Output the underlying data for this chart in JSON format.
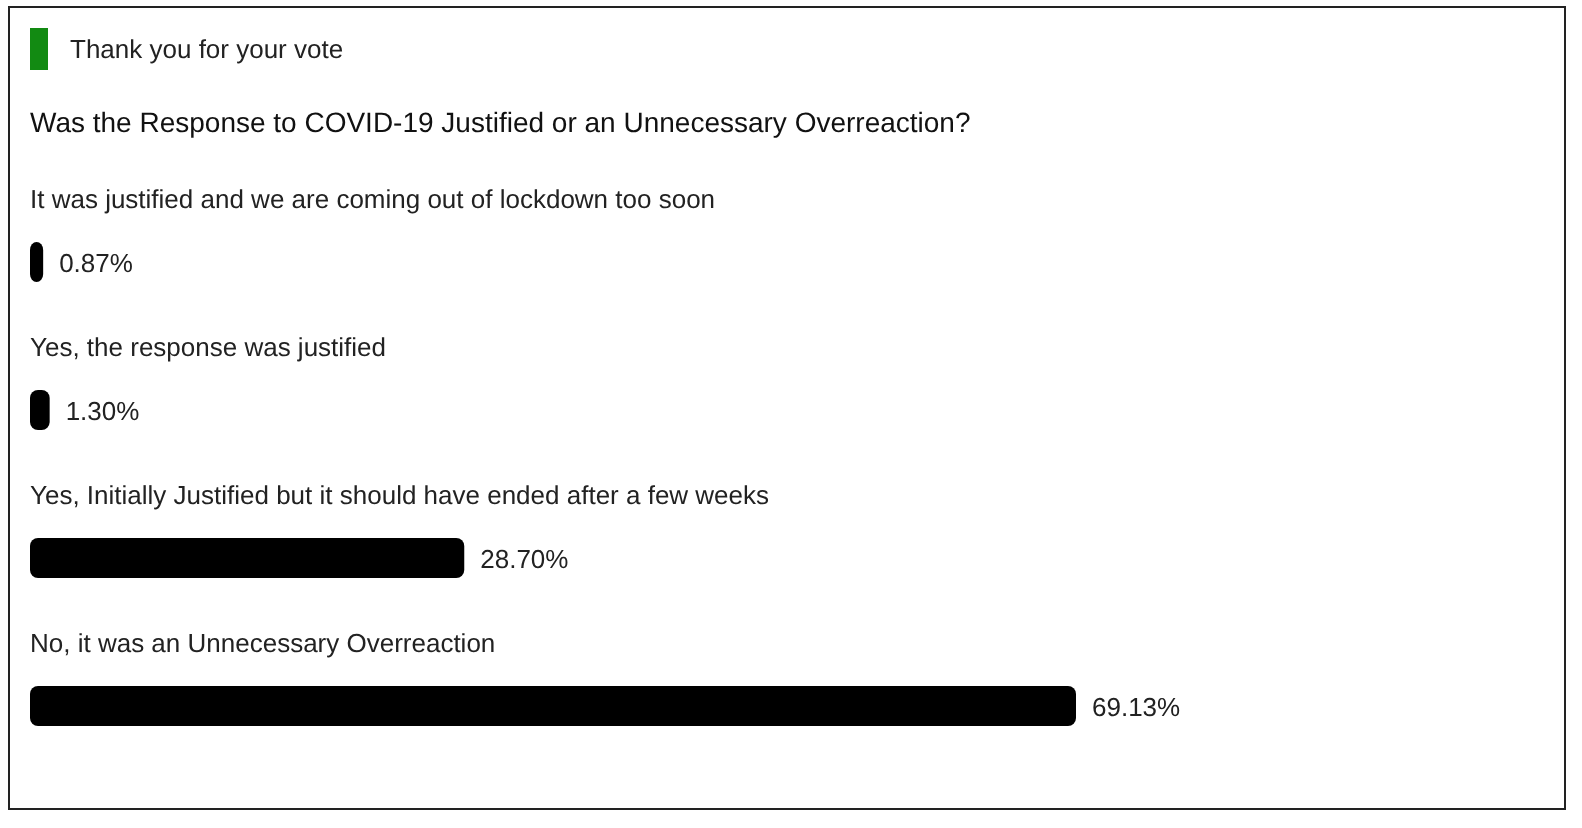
{
  "chart_data": {
    "type": "bar",
    "orientation": "horizontal",
    "title": "Was the Response to COVID-19 Justified or an Unnecessary Overreaction?",
    "annotations": [
      "Thank you for your vote"
    ],
    "categories": [
      "It was justified and we are coming out of lockdown too soon",
      "Yes, the response was justified",
      "Yes, Initially Justified but it should have ended after a few weeks",
      "No, it was an Unnecessary Overreaction"
    ],
    "values": [
      0.87,
      1.3,
      28.7,
      69.13
    ],
    "value_labels": [
      "0.87%",
      "1.30%",
      "28.70%",
      "69.13%"
    ],
    "color": "#000000",
    "tick_labels": false
  }
}
